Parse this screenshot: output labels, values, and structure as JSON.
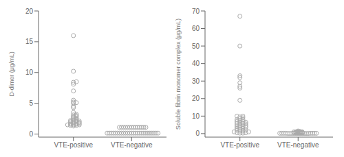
{
  "chart_data": [
    {
      "type": "beeswarm",
      "ylabel": "D-dimer (μg/mL)",
      "categories": [
        "VTE-positive",
        "VTE-negative"
      ],
      "values": [
        [
          16.0,
          10.2,
          8.5,
          8.4,
          8.1,
          7.0,
          5.5,
          5.2,
          5.1,
          5.0,
          4.5,
          4.3,
          3.5,
          3.2,
          3.1,
          3.0,
          2.9,
          2.8,
          2.7,
          2.6,
          2.5,
          2.4,
          2.3,
          2.2,
          2.2,
          2.1,
          2.1,
          2.0,
          2.0,
          1.9,
          1.9,
          1.8,
          1.8,
          1.7,
          1.7,
          1.6,
          1.6,
          1.5,
          1.5,
          1.5,
          1.4,
          1.4,
          1.3
        ],
        [
          1.1,
          1.1,
          1.1,
          1.1,
          1.1,
          1.1,
          1.1,
          1.1,
          1.1,
          1.1,
          1.1,
          1.1,
          1.1,
          1.1,
          0.15,
          0.15,
          0.15,
          0.15,
          0.15,
          0.15,
          0.15,
          0.15,
          0.15,
          0.15,
          0.15,
          0.15,
          0.15,
          0.15,
          0.15,
          0.15,
          0.15,
          0.15,
          0.15,
          0.15,
          0.15,
          0.15,
          0.15,
          0.15,
          0.15,
          0.15
        ]
      ],
      "ylim": [
        -0.5,
        20
      ],
      "yticks": [
        0,
        5,
        10,
        15,
        20
      ],
      "color": "#aaaaaa",
      "marker": "open_circle",
      "grid": false
    },
    {
      "type": "beeswarm",
      "ylabel": "Soluble fibrin monomer complex (μg/mL)",
      "categories": [
        "VTE-positive",
        "VTE-negative"
      ],
      "values": [
        [
          67.0,
          50.0,
          33.0,
          32.0,
          29.0,
          27.0,
          26.0,
          19.0,
          10.0,
          10.0,
          9.5,
          9.0,
          8.5,
          8.0,
          8.0,
          7.5,
          7.0,
          7.0,
          6.5,
          6.5,
          6.0,
          6.0,
          5.5,
          5.5,
          5.0,
          5.0,
          4.5,
          4.5,
          4.0,
          4.0,
          3.5,
          3.5,
          3.0,
          3.0,
          2.5,
          2.0,
          2.0,
          1.5,
          1.5,
          1.0,
          1.0,
          0.5,
          0.5,
          0.3,
          0.3
        ],
        [
          1.5,
          1.2,
          1.1,
          1.0,
          1.0,
          1.0,
          0.9,
          0.9,
          0.8,
          0.8,
          0.7,
          0.7,
          0.6,
          0.6,
          0.5,
          0.5,
          0.4,
          0.4,
          0.3,
          0.3,
          0.3,
          0.2,
          0.2,
          0.2,
          0.2,
          0.2,
          0.2,
          0.2,
          0.2,
          0.1,
          0.1,
          0.1,
          0.1,
          0.1,
          0.1,
          0.1,
          0.1,
          0.1,
          0.1,
          0.1
        ]
      ],
      "ylim": [
        -2,
        70
      ],
      "yticks": [
        0,
        10,
        20,
        30,
        40,
        50,
        60,
        70
      ],
      "color": "#aaaaaa",
      "marker": "open_circle",
      "grid": false
    }
  ]
}
